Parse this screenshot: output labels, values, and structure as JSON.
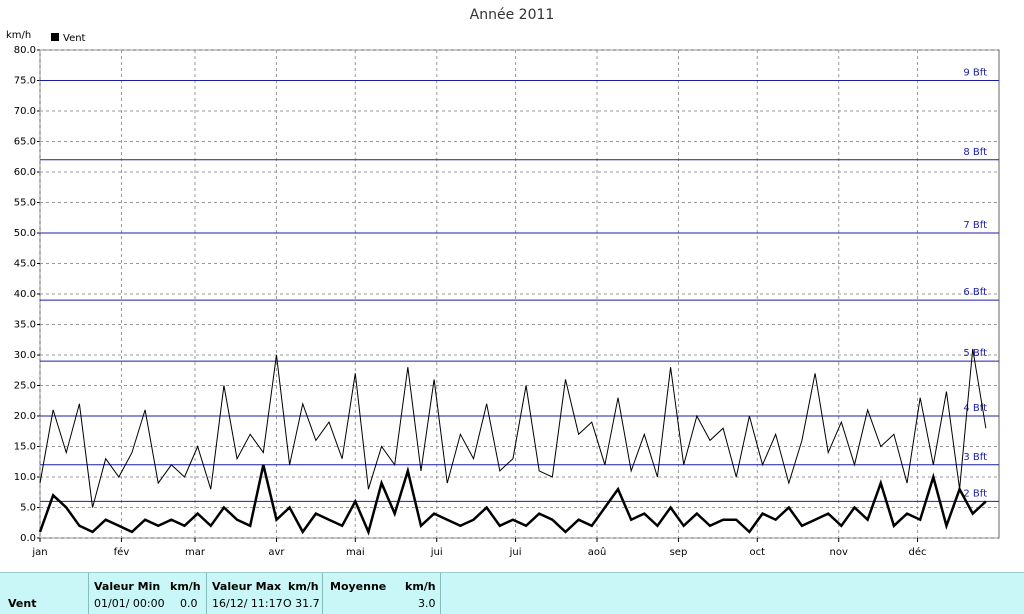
{
  "chart_data": {
    "type": "line",
    "title": "Année 2011",
    "y_label": "km/h",
    "x": [
      0,
      5,
      10,
      15,
      20,
      25,
      30,
      35,
      40,
      45,
      50,
      55,
      60,
      65,
      70,
      75,
      80,
      85,
      90,
      95,
      100,
      105,
      110,
      115,
      120,
      125,
      130,
      135,
      140,
      145,
      150,
      155,
      160,
      165,
      170,
      175,
      180,
      185,
      190,
      195,
      200,
      205,
      210,
      215,
      220,
      225,
      230,
      235,
      240,
      245,
      250,
      255,
      260,
      265,
      270,
      275,
      280,
      285,
      290,
      295,
      300,
      305,
      310,
      315,
      320,
      325,
      330,
      335,
      340,
      345,
      350,
      355,
      360
    ],
    "series": [
      {
        "color": "#000000",
        "width": 1,
        "values": [
          9,
          21,
          14,
          22,
          5,
          13,
          10,
          14,
          21,
          9,
          12,
          10,
          15,
          8,
          25,
          13,
          17,
          14,
          30,
          12,
          22,
          16,
          19,
          13,
          27,
          8,
          15,
          12,
          28,
          11,
          26,
          9,
          17,
          13,
          22,
          11,
          13,
          25,
          11,
          10,
          26,
          17,
          19,
          12,
          23,
          11,
          17,
          10,
          28,
          12,
          20,
          16,
          18,
          10,
          20,
          12,
          17,
          9,
          16,
          27,
          14,
          19,
          12,
          21,
          15,
          17,
          9,
          23,
          12,
          24,
          8,
          31,
          18
        ]
      },
      {
        "name": "Vent",
        "color": "#000000",
        "width": 2.5,
        "values": [
          1,
          7,
          5,
          2,
          1,
          3,
          2,
          1,
          3,
          2,
          3,
          2,
          4,
          2,
          5,
          3,
          2,
          12,
          3,
          5,
          1,
          4,
          3,
          2,
          6,
          1,
          9,
          4,
          11,
          2,
          4,
          3,
          2,
          3,
          5,
          2,
          3,
          2,
          4,
          3,
          1,
          3,
          2,
          5,
          8,
          3,
          4,
          2,
          5,
          2,
          4,
          2,
          3,
          3,
          1,
          4,
          3,
          5,
          2,
          3,
          4,
          2,
          5,
          3,
          9,
          2,
          4,
          3,
          10,
          2,
          8,
          4,
          6
        ]
      }
    ],
    "xlim": [
      0,
      365
    ],
    "xticks": [
      {
        "value": 0,
        "label": "jan"
      },
      {
        "value": 31,
        "label": "fév"
      },
      {
        "value": 59,
        "label": "mar"
      },
      {
        "value": 90,
        "label": "avr"
      },
      {
        "value": 120,
        "label": "mai"
      },
      {
        "value": 151,
        "label": "jui"
      },
      {
        "value": 181,
        "label": "jui"
      },
      {
        "value": 212,
        "label": "aoû"
      },
      {
        "value": 243,
        "label": "sep"
      },
      {
        "value": 273,
        "label": "oct"
      },
      {
        "value": 304,
        "label": "nov"
      },
      {
        "value": 334,
        "label": "déc"
      }
    ],
    "ylim": [
      0,
      80
    ],
    "yticks": [
      {
        "value": 0,
        "label": "0.0"
      },
      {
        "value": 5,
        "label": "5.0"
      },
      {
        "value": 10,
        "label": "10.0"
      },
      {
        "value": 15,
        "label": "15.0"
      },
      {
        "value": 20,
        "label": "20.0"
      },
      {
        "value": 25,
        "label": "25.0"
      },
      {
        "value": 30,
        "label": "30.0"
      },
      {
        "value": 35,
        "label": "35.0"
      },
      {
        "value": 40,
        "label": "40.0"
      },
      {
        "value": 45,
        "label": "45.0"
      },
      {
        "value": 50,
        "label": "50.0"
      },
      {
        "value": 55,
        "label": "55.0"
      },
      {
        "value": 60,
        "label": "60.0"
      },
      {
        "value": 65,
        "label": "65.0"
      },
      {
        "value": 70,
        "label": "70.0"
      },
      {
        "value": 75,
        "label": "75.0"
      },
      {
        "value": 80,
        "label": "80.0"
      }
    ],
    "grid": true,
    "thresholds": [
      {
        "value": 6,
        "label": "2 Bft"
      },
      {
        "value": 12,
        "label": "3 Bft"
      },
      {
        "value": 20,
        "label": "4 Bft"
      },
      {
        "value": 29,
        "label": "5 Bft"
      },
      {
        "value": 39,
        "label": "6 Bft"
      },
      {
        "value": 50,
        "label": "7 Bft"
      },
      {
        "value": 62,
        "label": "8 Bft"
      },
      {
        "value": 75,
        "label": "9 Bft"
      }
    ],
    "threshold_color": "#1c1ca8"
  },
  "stats": {
    "row_label": "Vent",
    "min_header": "Valeur Min",
    "min_unit": "km/h",
    "min_date": "01/01/ 00:00",
    "min_value": "0.0",
    "max_header": "Valeur Max",
    "max_unit": "km/h",
    "max_date": "16/12/ 11:17",
    "max_value": "O 31.7",
    "avg_header": "Moyenne",
    "avg_unit": "km/h",
    "avg_value": "3.0"
  }
}
